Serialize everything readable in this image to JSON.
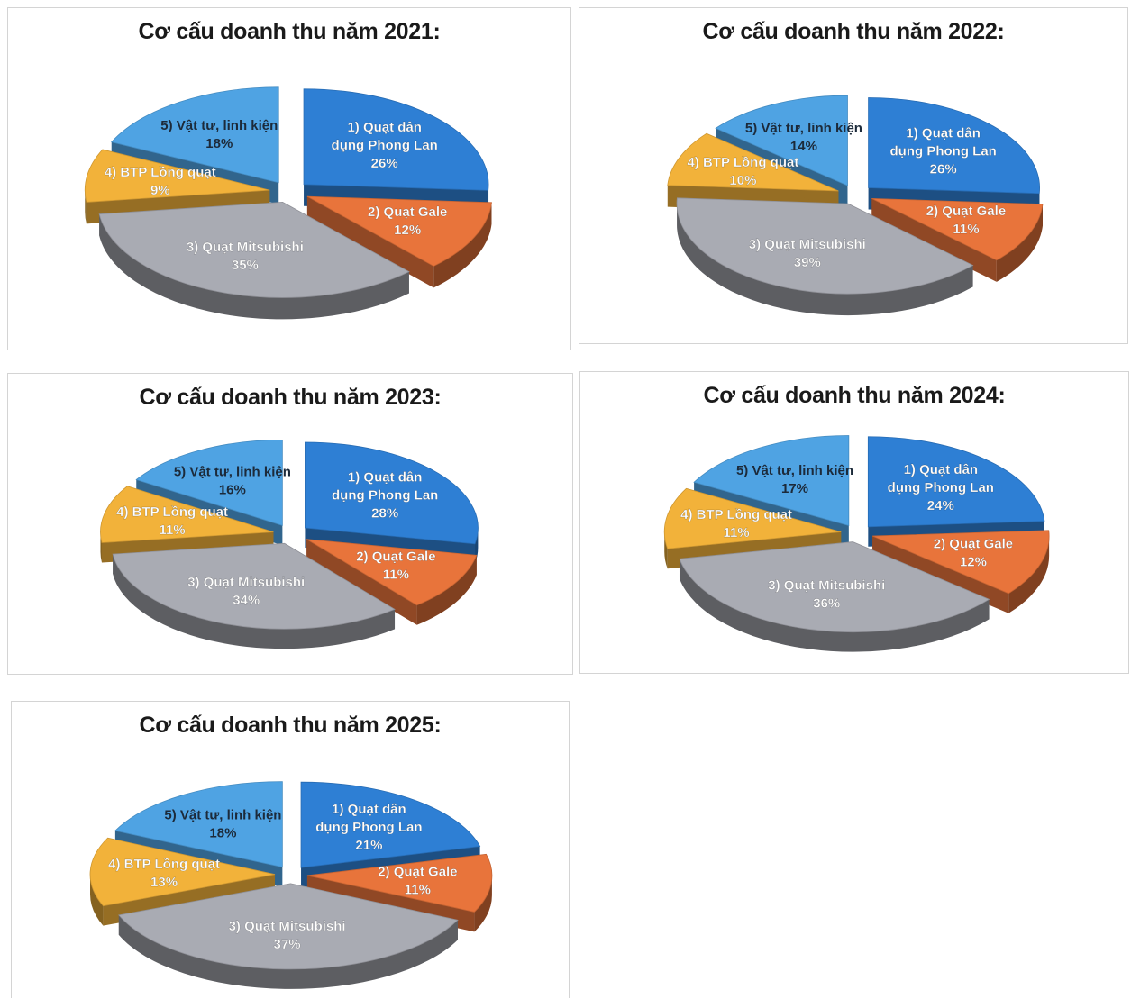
{
  "colors": {
    "phong_lan": "#2e7fd4",
    "gale": "#e8743b",
    "mitsubishi": "#a9abb3",
    "long_quat": "#f2b23a",
    "vat_tu": "#4fa3e3"
  },
  "chart_data": [
    {
      "type": "pie",
      "title": "Cơ cấu doanh thu năm 2021:",
      "slices": [
        {
          "name": "1) Quạt dân dụng Phong Lan",
          "label_lines": [
            "1) Quạt dân",
            "dụng Phong Lan"
          ],
          "value": 26,
          "value_label": "26%",
          "color_key": "phong_lan"
        },
        {
          "name": "2) Quạt Gale",
          "label_lines": [
            "2) Quạt Gale"
          ],
          "value": 12,
          "value_label": "12%",
          "color_key": "gale"
        },
        {
          "name": "3) Quạt Mitsubishi",
          "label_lines": [
            "3) Quạt Mitsubishi"
          ],
          "value": 35,
          "value_label": "35%",
          "color_key": "mitsubishi"
        },
        {
          "name": "4) BTP Lồng quạt",
          "label_lines": [
            "4) BTP Lồng quạt"
          ],
          "value": 9,
          "value_label": "9%",
          "color_key": "long_quat"
        },
        {
          "name": "5) Vật tư, linh kiện",
          "label_lines": [
            "5) Vật tư, linh kiện"
          ],
          "value": 18,
          "value_label": "18%",
          "color_key": "vat_tu"
        }
      ]
    },
    {
      "type": "pie",
      "title": "Cơ cấu doanh thu năm 2022:",
      "slices": [
        {
          "name": "1) Quạt dân dụng Phong Lan",
          "label_lines": [
            "1) Quạt dân",
            "dụng Phong Lan"
          ],
          "value": 26,
          "value_label": "26%",
          "color_key": "phong_lan"
        },
        {
          "name": "2) Quạt Gale",
          "label_lines": [
            "2) Quạt Gale"
          ],
          "value": 11,
          "value_label": "11%",
          "color_key": "gale"
        },
        {
          "name": "3) Quạt Mitsubishi",
          "label_lines": [
            "3) Quạt Mitsubishi"
          ],
          "value": 39,
          "value_label": "39%",
          "color_key": "mitsubishi"
        },
        {
          "name": "4) BTP Lồng quạt",
          "label_lines": [
            "4) BTP Lồng quạt"
          ],
          "value": 10,
          "value_label": "10%",
          "color_key": "long_quat"
        },
        {
          "name": "5) Vật tư, linh kiện",
          "label_lines": [
            "5) Vật tư, linh kiện"
          ],
          "value": 14,
          "value_label": "14%",
          "color_key": "vat_tu"
        }
      ]
    },
    {
      "type": "pie",
      "title": "Cơ cấu doanh thu năm 2023:",
      "slices": [
        {
          "name": "1) Quạt dân dụng Phong Lan",
          "label_lines": [
            "1) Quạt dân",
            "dụng Phong Lan"
          ],
          "value": 28,
          "value_label": "28%",
          "color_key": "phong_lan"
        },
        {
          "name": "2) Quạt Gale",
          "label_lines": [
            "2) Quạt Gale"
          ],
          "value": 11,
          "value_label": "11%",
          "color_key": "gale"
        },
        {
          "name": "3) Quạt Mitsubishi",
          "label_lines": [
            "3) Quạt Mitsubishi"
          ],
          "value": 34,
          "value_label": "34%",
          "color_key": "mitsubishi"
        },
        {
          "name": "4) BTP Lồng quạt",
          "label_lines": [
            "4) BTP Lồng quạt"
          ],
          "value": 11,
          "value_label": "11%",
          "color_key": "long_quat"
        },
        {
          "name": "5) Vật tư, linh kiện",
          "label_lines": [
            "5) Vật tư, linh kiện"
          ],
          "value": 16,
          "value_label": "16%",
          "color_key": "vat_tu"
        }
      ]
    },
    {
      "type": "pie",
      "title": "Cơ cấu doanh thu năm 2024:",
      "slices": [
        {
          "name": "1) Quạt dân dụng Phong Lan",
          "label_lines": [
            "1) Quạt dân",
            "dụng Phong Lan"
          ],
          "value": 24,
          "value_label": "24%",
          "color_key": "phong_lan"
        },
        {
          "name": "2) Quạt Gale",
          "label_lines": [
            "2) Quạt Gale"
          ],
          "value": 12,
          "value_label": "12%",
          "color_key": "gale"
        },
        {
          "name": "3) Quạt Mitsubishi",
          "label_lines": [
            "3) Quạt Mitsubishi"
          ],
          "value": 36,
          "value_label": "36%",
          "color_key": "mitsubishi"
        },
        {
          "name": "4) BTP Lồng quạt",
          "label_lines": [
            "4) BTP Lồng quạt"
          ],
          "value": 11,
          "value_label": "11%",
          "color_key": "long_quat"
        },
        {
          "name": "5) Vật tư, linh kiện",
          "label_lines": [
            "5) Vật tư, linh kiện"
          ],
          "value": 17,
          "value_label": "17%",
          "color_key": "vat_tu"
        }
      ]
    },
    {
      "type": "pie",
      "title": "Cơ cấu doanh thu năm 2025:",
      "slices": [
        {
          "name": "1) Quạt dân dụng Phong Lan",
          "label_lines": [
            "1) Quạt dân",
            "dụng Phong Lan"
          ],
          "value": 21,
          "value_label": "21%",
          "color_key": "phong_lan"
        },
        {
          "name": "2) Quạt Gale",
          "label_lines": [
            "2) Quạt Gale"
          ],
          "value": 11,
          "value_label": "11%",
          "color_key": "gale"
        },
        {
          "name": "3) Quạt Mitsubishi",
          "label_lines": [
            "3) Quạt Mitsubishi"
          ],
          "value": 37,
          "value_label": "37%",
          "color_key": "mitsubishi"
        },
        {
          "name": "4) BTP Lồng quạt",
          "label_lines": [
            "4) BTP Lồng quạt"
          ],
          "value": 13,
          "value_label": "13%",
          "color_key": "long_quat"
        },
        {
          "name": "5) Vật tư, linh kiện",
          "label_lines": [
            "5) Vật tư, linh kiện"
          ],
          "value": 18,
          "value_label": "18%",
          "color_key": "vat_tu"
        }
      ]
    }
  ]
}
